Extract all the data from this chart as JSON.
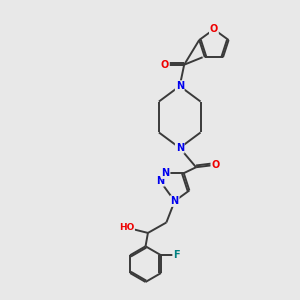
{
  "background_color": "#e8e8e8",
  "bond_color": "#3a3a3a",
  "bond_width": 1.4,
  "atom_colors": {
    "N": "#0000ee",
    "O": "#ee0000",
    "F": "#008080",
    "C": "#3a3a3a"
  },
  "font_size": 7.0,
  "dbo": 0.06
}
